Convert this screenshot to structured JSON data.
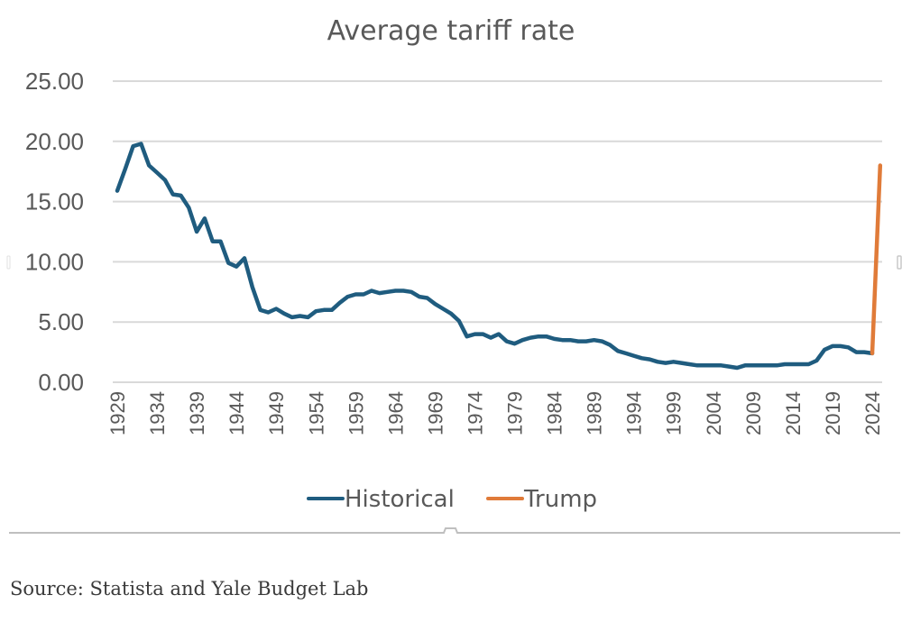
{
  "chart_data": {
    "type": "line",
    "title": "Average tariff rate",
    "xlabel": "",
    "ylabel": "",
    "ylim": [
      0,
      25
    ],
    "yticks": [
      "0.00",
      "5.00",
      "10.00",
      "15.00",
      "20.00",
      "25.00"
    ],
    "ytick_values": [
      0,
      5,
      10,
      15,
      20,
      25
    ],
    "xticks": [
      "1929",
      "1934",
      "1939",
      "1944",
      "1949",
      "1954",
      "1959",
      "1964",
      "1969",
      "1974",
      "1979",
      "1984",
      "1989",
      "1994",
      "1999",
      "2004",
      "2009",
      "2014",
      "2019",
      "2024"
    ],
    "xlim": [
      1929,
      2025
    ],
    "grid": "horizontal",
    "legend_position": "bottom",
    "series": [
      {
        "name": "Historical",
        "color": "#1f5c7f",
        "x": [
          1929,
          1930,
          1931,
          1932,
          1933,
          1934,
          1935,
          1936,
          1937,
          1938,
          1939,
          1940,
          1941,
          1942,
          1943,
          1944,
          1945,
          1946,
          1947,
          1948,
          1949,
          1950,
          1951,
          1952,
          1953,
          1954,
          1955,
          1956,
          1957,
          1958,
          1959,
          1960,
          1961,
          1962,
          1963,
          1964,
          1965,
          1966,
          1967,
          1968,
          1969,
          1970,
          1971,
          1972,
          1973,
          1974,
          1975,
          1976,
          1977,
          1978,
          1979,
          1980,
          1981,
          1982,
          1983,
          1984,
          1985,
          1986,
          1987,
          1988,
          1989,
          1990,
          1991,
          1992,
          1993,
          1994,
          1995,
          1996,
          1997,
          1998,
          1999,
          2000,
          2001,
          2002,
          2003,
          2004,
          2005,
          2006,
          2007,
          2008,
          2009,
          2010,
          2011,
          2012,
          2013,
          2014,
          2015,
          2016,
          2017,
          2018,
          2019,
          2020,
          2021,
          2022,
          2023,
          2024
        ],
        "values": [
          15.9,
          17.7,
          19.6,
          19.8,
          18.0,
          17.4,
          16.8,
          15.6,
          15.5,
          14.5,
          12.5,
          13.6,
          11.7,
          11.7,
          9.9,
          9.6,
          10.3,
          7.9,
          6.0,
          5.8,
          6.1,
          5.7,
          5.4,
          5.5,
          5.4,
          5.9,
          6.0,
          6.0,
          6.6,
          7.1,
          7.3,
          7.3,
          7.6,
          7.4,
          7.5,
          7.6,
          7.6,
          7.5,
          7.1,
          7.0,
          6.5,
          6.1,
          5.7,
          5.1,
          3.8,
          4.0,
          4.0,
          3.7,
          4.0,
          3.4,
          3.2,
          3.5,
          3.7,
          3.8,
          3.8,
          3.6,
          3.5,
          3.5,
          3.4,
          3.4,
          3.5,
          3.4,
          3.1,
          2.6,
          2.4,
          2.2,
          2.0,
          1.9,
          1.7,
          1.6,
          1.7,
          1.6,
          1.5,
          1.4,
          1.4,
          1.4,
          1.4,
          1.3,
          1.2,
          1.4,
          1.4,
          1.4,
          1.4,
          1.4,
          1.5,
          1.5,
          1.5,
          1.5,
          1.8,
          2.7,
          3.0,
          3.0,
          2.9,
          2.5,
          2.5,
          2.4
        ]
      },
      {
        "name": "Trump",
        "color": "#e07b39",
        "x": [
          2024,
          2025
        ],
        "values": [
          2.4,
          18.0
        ]
      }
    ]
  },
  "source": "Source: Statista and Yale Budget Lab"
}
